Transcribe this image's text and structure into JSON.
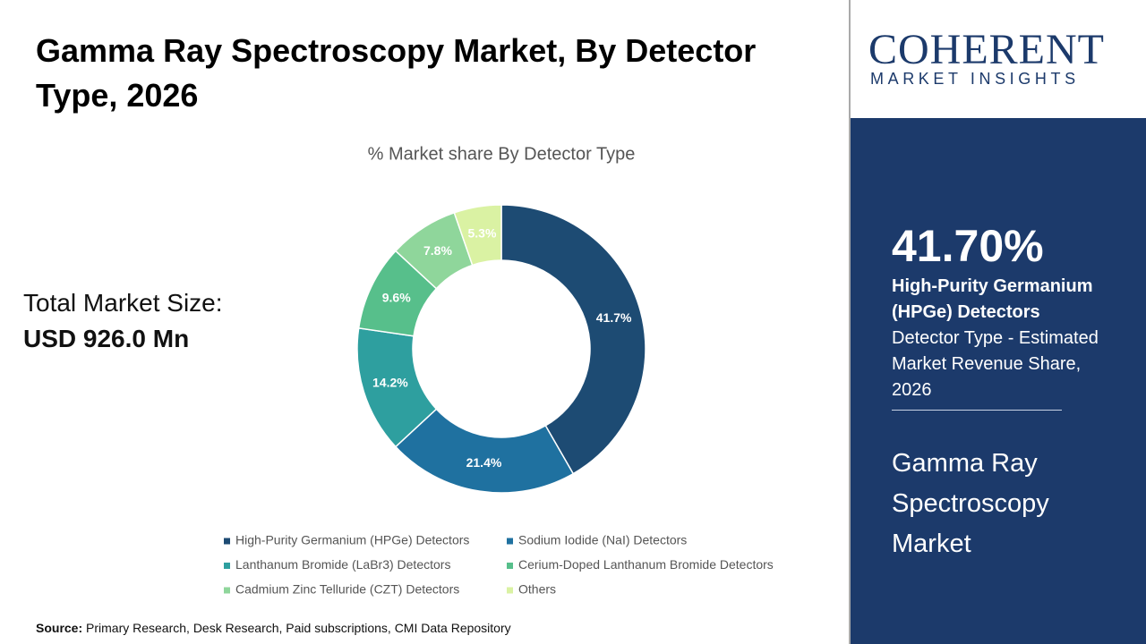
{
  "header": {
    "title": "Gamma Ray Spectroscopy Market, By Detector Type, 2026"
  },
  "market_size": {
    "label": "Total Market Size:",
    "value": "USD 926.0 Mn"
  },
  "logo": {
    "name": "COHERENT",
    "tagline": "MARKET INSIGHTS"
  },
  "highlight": {
    "value": "41.70%",
    "segment": "High-Purity Germanium (HPGe) Detectors",
    "description": "Detector Type - Estimated Market Revenue Share, 2026",
    "market": "Gamma Ray Spectroscopy Market"
  },
  "source": {
    "label": "Source:",
    "text": "Primary Research, Desk Research, Paid subscriptions, CMI Data Repository"
  },
  "chart_data": {
    "type": "donut",
    "title": "% Market share By Detector Type",
    "categories": [
      "High-Purity Germanium (HPGe) Detectors",
      "Sodium Iodide (NaI) Detectors",
      "Lanthanum Bromide (LaBr3) Detectors",
      "Cerium-Doped Lanthanum Bromide Detectors",
      "Cadmium Zinc Telluride (CZT) Detectors",
      "Others"
    ],
    "values": [
      41.7,
      21.4,
      14.2,
      9.6,
      7.8,
      5.3
    ],
    "value_labels": [
      "41.7%",
      "21.4%",
      "14.2%",
      "9.6%",
      "7.8%",
      "5.3%"
    ],
    "colors": [
      "#1d4b73",
      "#1f71a0",
      "#2e9f9f",
      "#57bf8b",
      "#8fd69b",
      "#daf2a3"
    ]
  }
}
